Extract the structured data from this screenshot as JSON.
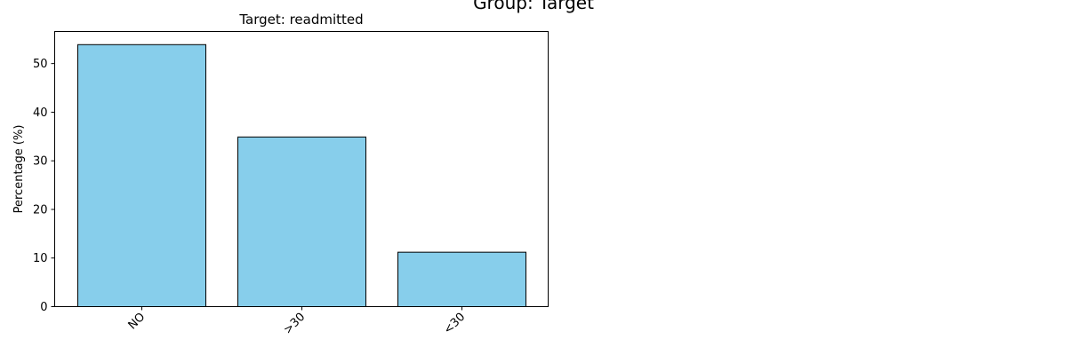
{
  "figure": {
    "suptitle": "Group: Target"
  },
  "chart_data": {
    "type": "bar",
    "title": "Target: readmitted",
    "xlabel": "",
    "ylabel": "Percentage (%)",
    "categories": [
      "NO",
      ">30",
      "<30"
    ],
    "values": [
      53.9,
      34.9,
      11.2
    ],
    "ylim": [
      0,
      56.6
    ],
    "yticks": [
      0,
      10,
      20,
      30,
      40,
      50
    ],
    "bar_color": "#87CEEB",
    "edge_color": "#000000",
    "grid": false,
    "legend": "none"
  }
}
